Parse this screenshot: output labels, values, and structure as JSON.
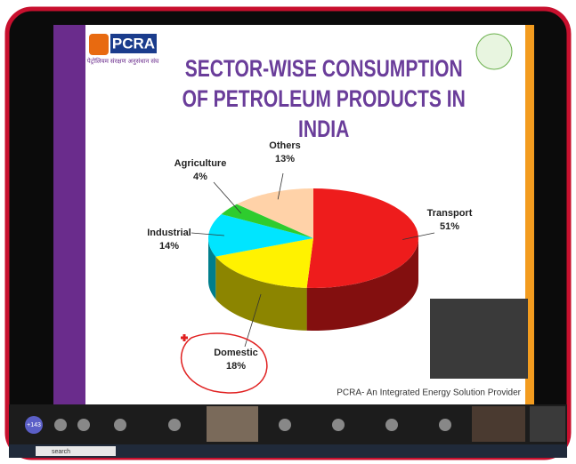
{
  "slide": {
    "logo": "PCRA",
    "tagline": "पेट्रोलियम संरक्षण अनुसंधान संघ",
    "footer": "PCRA- An Integrated Energy Solution Provider"
  },
  "chart_data": {
    "type": "pie",
    "title": "SECTOR-WISE CONSUMPTION OF PETROLEUM PRODUCTS IN INDIA",
    "categories": [
      "Transport",
      "Domestic",
      "Industrial",
      "Agriculture",
      "Others"
    ],
    "values": [
      51,
      18,
      14,
      4,
      13
    ],
    "value_labels": [
      "51%",
      "18%",
      "14%",
      "4%",
      "13%"
    ],
    "colors": [
      "#ee1c1c",
      "#fff200",
      "#00e5ff",
      "#2ecc2e",
      "#ffd2a8"
    ]
  },
  "meeting": {
    "overflow_count": "+143",
    "search": "search"
  }
}
